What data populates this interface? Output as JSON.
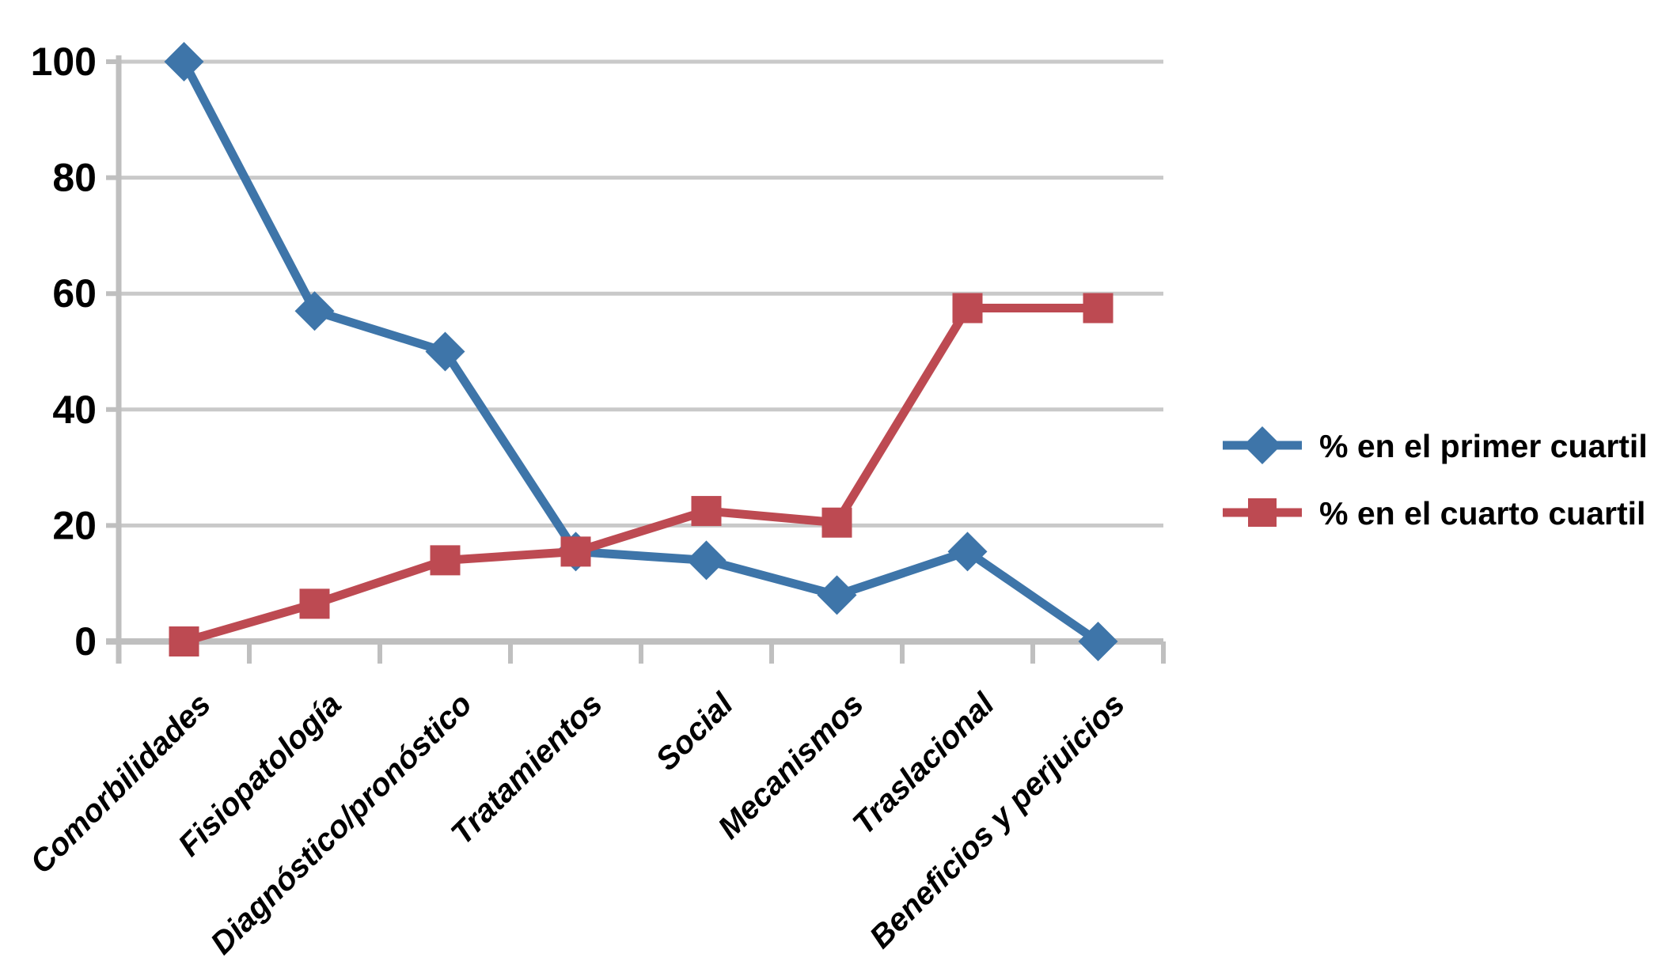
{
  "chart_data": {
    "type": "line",
    "title": "",
    "xlabel": "",
    "ylabel": "",
    "categories": [
      "Comorbilidades",
      "Fisiopatología",
      "Diagnóstico/pronóstico",
      "Tratamientos",
      "Social",
      "Mecanismos",
      "Traslacional",
      "Beneficios y perjuicios"
    ],
    "series": [
      {
        "name": "% en el primer cuartil",
        "marker": "diamond",
        "color": "#3E75A9",
        "values": [
          100,
          57,
          50,
          15.5,
          14,
          8,
          15.5,
          0
        ]
      },
      {
        "name": "% en el cuarto cuartil",
        "marker": "square",
        "color": "#BD4A52",
        "values": [
          0,
          6.5,
          14,
          15.5,
          22.5,
          20.5,
          57.5,
          57.5
        ]
      }
    ],
    "ylim": [
      0,
      100
    ],
    "yticks": [
      0,
      20,
      40,
      60,
      80,
      100
    ],
    "grid": "horizontal",
    "legend_position": "right"
  },
  "styles": {
    "background": "#FFFFFF",
    "gridline_color": "#C9C9C9",
    "axis_color": "#BFBFBF",
    "text_color": "#000000"
  }
}
